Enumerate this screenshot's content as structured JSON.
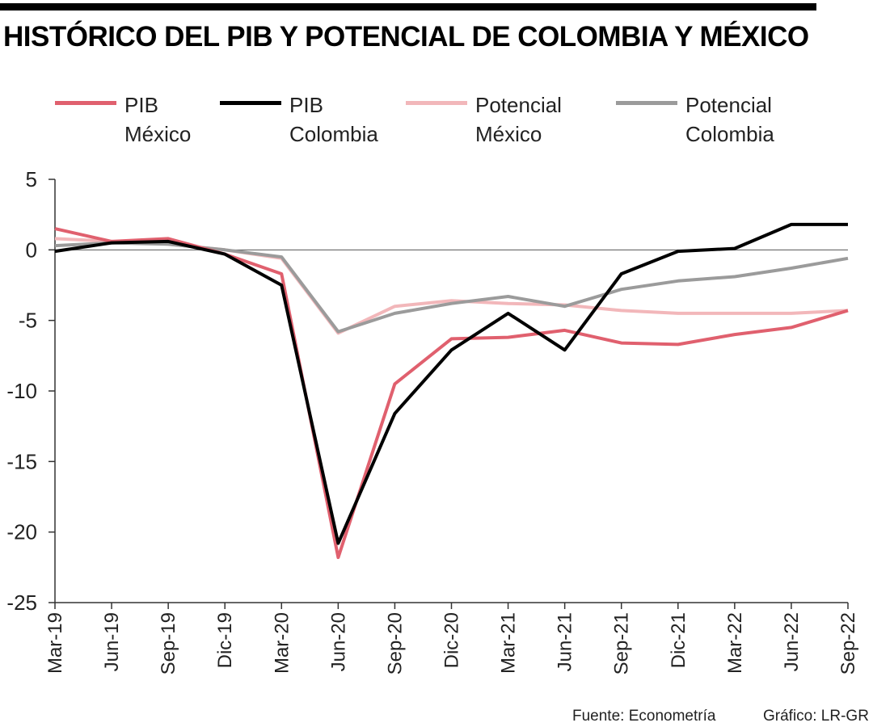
{
  "header": {
    "title": "HISTÓRICO DEL PIB Y POTENCIAL DE COLOMBIA Y MÉXICO"
  },
  "legend": [
    {
      "line1": "PIB",
      "line2": "México",
      "color": "#e0606e"
    },
    {
      "line1": "PIB",
      "line2": "Colombia",
      "color": "#000000"
    },
    {
      "line1": "Potencial",
      "line2": "México",
      "color": "#f2b7ba"
    },
    {
      "line1": "Potencial",
      "line2": "Colombia",
      "color": "#9b9b9b"
    }
  ],
  "chart_data": {
    "type": "line",
    "title": "HISTÓRICO DEL PIB Y POTENCIAL DE COLOMBIA Y MÉXICO",
    "xlabel": "",
    "ylabel": "",
    "ylim": [
      -25,
      5
    ],
    "yticks": [
      5,
      0,
      -5,
      -10,
      -15,
      -20,
      -25
    ],
    "categories": [
      "Mar-19",
      "Jun-19",
      "Sep-19",
      "Dic-19",
      "Mar-20",
      "Jun-20",
      "Sep-20",
      "Dic-20",
      "Mar-21",
      "Jun-21",
      "Sep-21",
      "Dic-21",
      "Mar-22",
      "Jun-22",
      "Sep-22"
    ],
    "series": [
      {
        "name": "Potencial México",
        "color": "#f2b7ba",
        "values": [
          0.8,
          0.6,
          0.4,
          0.0,
          -0.6,
          -5.9,
          -4.0,
          -3.6,
          -3.8,
          -3.9,
          -4.3,
          -4.5,
          -4.5,
          -4.5,
          -4.3
        ]
      },
      {
        "name": "Potencial Colombia",
        "color": "#9b9b9b",
        "values": [
          0.3,
          0.5,
          0.4,
          0.0,
          -0.5,
          -5.8,
          -4.5,
          -3.8,
          -3.3,
          -4.0,
          -2.8,
          -2.2,
          -1.9,
          -1.3,
          -0.6
        ]
      },
      {
        "name": "PIB México",
        "color": "#e0606e",
        "values": [
          1.5,
          0.6,
          0.8,
          -0.3,
          -1.7,
          -21.8,
          -9.5,
          -6.3,
          -6.2,
          -5.7,
          -6.6,
          -6.7,
          -6.0,
          -5.5,
          -4.3
        ]
      },
      {
        "name": "PIB Colombia",
        "color": "#000000",
        "values": [
          -0.1,
          0.5,
          0.6,
          -0.3,
          -2.5,
          -20.8,
          -11.6,
          -7.1,
          -4.5,
          -7.1,
          -1.7,
          -0.1,
          0.1,
          1.8,
          1.8
        ]
      }
    ]
  },
  "footer": {
    "source": "Fuente: Econometría",
    "credit": "Gráfico: LR-GR"
  }
}
